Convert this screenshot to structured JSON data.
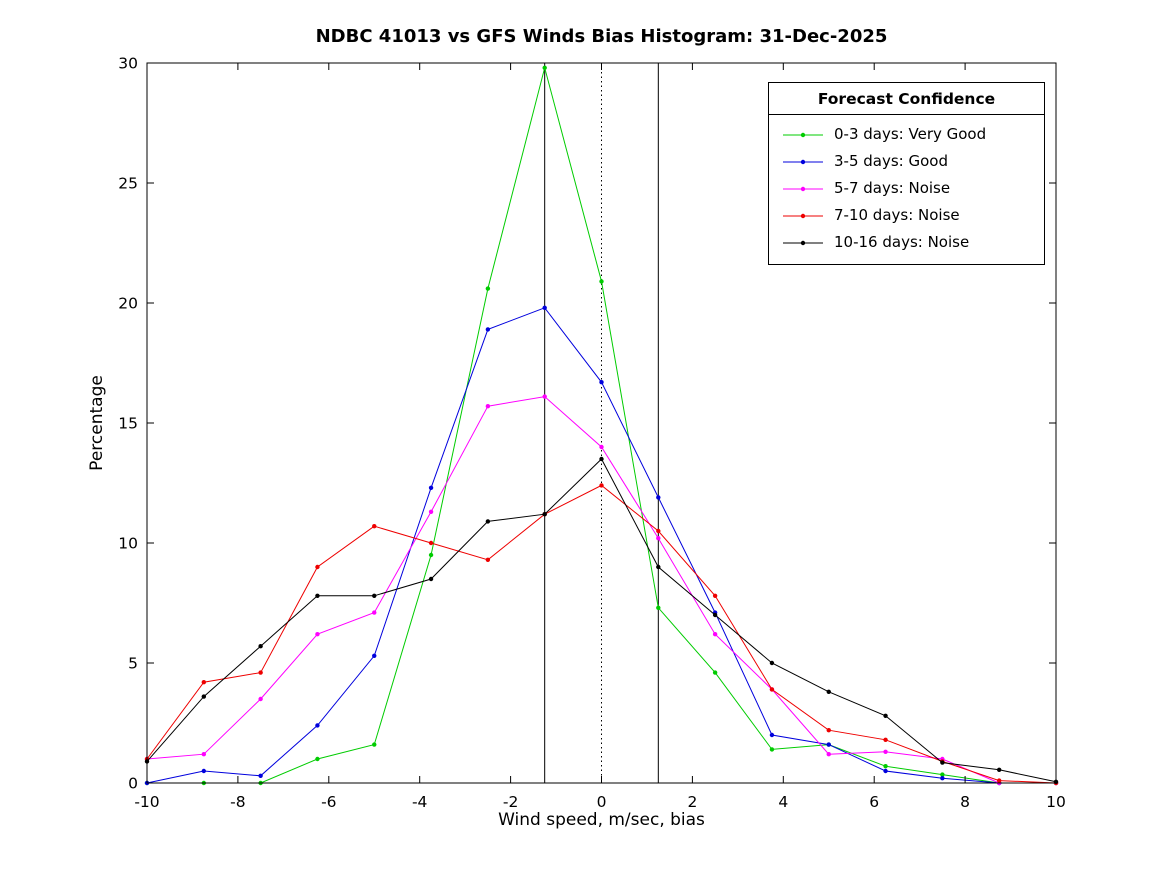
{
  "chart_data": {
    "type": "line",
    "title": "NDBC 41013 vs GFS Winds Bias Histogram: 31-Dec-2025",
    "xlabel": "Wind speed, m/sec, bias",
    "ylabel": "Percentage",
    "xlim": [
      -10,
      10
    ],
    "ylim": [
      0,
      30
    ],
    "xticks": [
      -10,
      -8,
      -6,
      -4,
      -2,
      0,
      2,
      4,
      6,
      8,
      10
    ],
    "yticks": [
      0,
      5,
      10,
      15,
      20,
      25,
      30
    ],
    "grid": false,
    "marker": "point",
    "legend_title": "Forecast Confidence",
    "legend_position": "top-right",
    "x": [
      -10,
      -8.75,
      -7.5,
      -6.25,
      -5,
      -3.75,
      -2.5,
      -1.25,
      0,
      1.25,
      2.5,
      3.75,
      5,
      6.25,
      7.5,
      8.75,
      10
    ],
    "series": [
      {
        "name": "0-3 days: Very Good",
        "color": "#00cc00",
        "values": [
          0,
          0,
          0,
          1.0,
          1.6,
          9.5,
          20.6,
          29.8,
          20.9,
          7.3,
          4.6,
          1.4,
          1.6,
          0.7,
          0.35,
          0,
          0
        ]
      },
      {
        "name": "3-5 days: Good",
        "color": "#0000dd",
        "values": [
          0,
          0.5,
          0.3,
          2.4,
          5.3,
          12.3,
          18.9,
          19.8,
          16.7,
          11.9,
          7.1,
          2.0,
          1.6,
          0.5,
          0.2,
          0,
          0
        ]
      },
      {
        "name": "5-7 days: Noise",
        "color": "#ff00ff",
        "values": [
          1.0,
          1.2,
          3.5,
          6.2,
          7.1,
          11.3,
          15.7,
          16.1,
          14.0,
          10.2,
          6.2,
          3.9,
          1.2,
          1.3,
          1.0,
          0,
          0
        ]
      },
      {
        "name": "7-10 days: Noise",
        "color": "#ee0000",
        "values": [
          1.0,
          4.2,
          4.6,
          9.0,
          10.7,
          10.0,
          9.3,
          11.2,
          12.4,
          10.5,
          7.8,
          3.9,
          2.2,
          1.8,
          0.9,
          0.1,
          0
        ]
      },
      {
        "name": "10-16 days: Noise",
        "color": "#000000",
        "values": [
          0.9,
          3.6,
          5.7,
          7.8,
          7.8,
          8.5,
          10.9,
          11.2,
          13.5,
          9.0,
          7.0,
          5.0,
          3.8,
          2.8,
          0.85,
          0.55,
          0.05
        ]
      }
    ],
    "reference_lines": [
      {
        "x": -1.25,
        "style": "solid",
        "color": "#000000"
      },
      {
        "x": 0,
        "style": "dotted",
        "color": "#000000"
      },
      {
        "x": 1.25,
        "style": "solid",
        "color": "#000000"
      }
    ]
  }
}
